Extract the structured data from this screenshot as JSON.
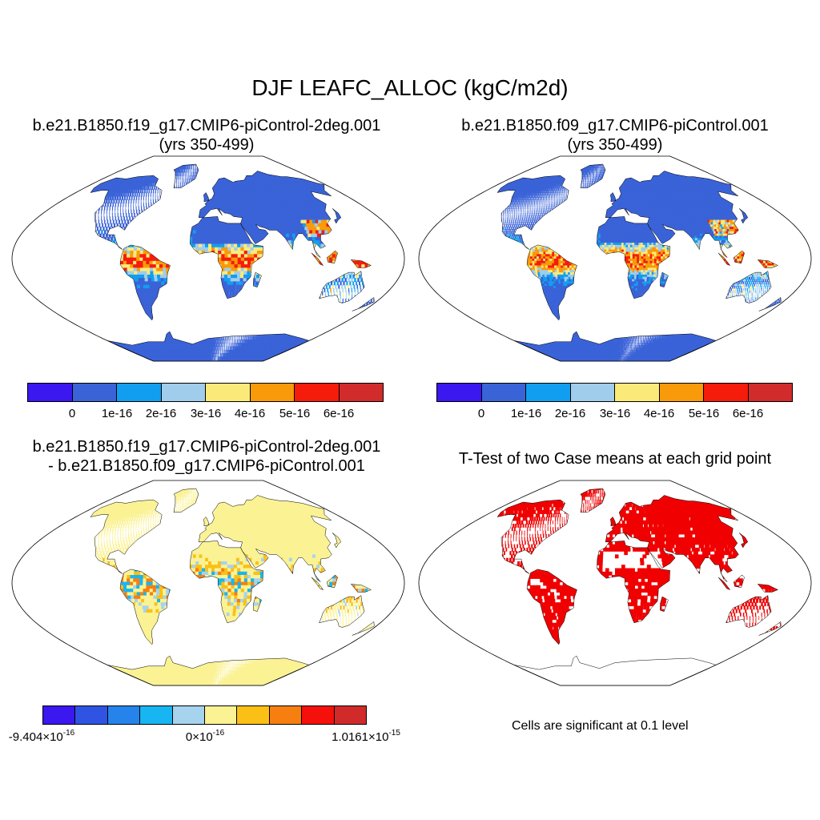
{
  "main_title": "DJF LEAFC_ALLOC (kgC/m2d)",
  "panels": {
    "top_left": {
      "title_line1": "b.e21.B1850.f19_g17.CMIP6-piControl-2deg.001",
      "title_line2": "(yrs 350-499)"
    },
    "top_right": {
      "title_line1": "b.e21.B1850.f09_g17.CMIP6-piControl.001",
      "title_line2": "(yrs 350-499)"
    },
    "bottom_left": {
      "title_line1": "b.e21.B1850.f19_g17.CMIP6-piControl-2deg.001",
      "title_line2": "- b.e21.B1850.f09_g17.CMIP6-piControl.001"
    },
    "bottom_right": {
      "title_line1": "T-Test of two Case means at each grid point",
      "note": "Cells are significant at 0.1 level"
    }
  },
  "colorbar_case": {
    "colors": [
      "#3b17f0",
      "#3a63d8",
      "#129ef0",
      "#9fcdeb",
      "#fbea7a",
      "#f99a0a",
      "#f51c0c",
      "#d22b2b"
    ],
    "labels": [
      "0",
      "1e-16",
      "2e-16",
      "3e-16",
      "4e-16",
      "5e-16",
      "6e-16"
    ]
  },
  "colorbar_diff": {
    "colors": [
      "#3b17f0",
      "#2f54e3",
      "#2683ec",
      "#17b6f3",
      "#a6d3ee",
      "#fbf294",
      "#fbc015",
      "#f77f0f",
      "#f5100c",
      "#d12a2a"
    ],
    "label_left_mantissa": "-9.404×10",
    "label_left_exp": "-16",
    "label_mid_mantissa": "0×10",
    "label_mid_exp": "-16",
    "label_right_mantissa": "1.0161×10",
    "label_right_exp": "-15"
  }
}
